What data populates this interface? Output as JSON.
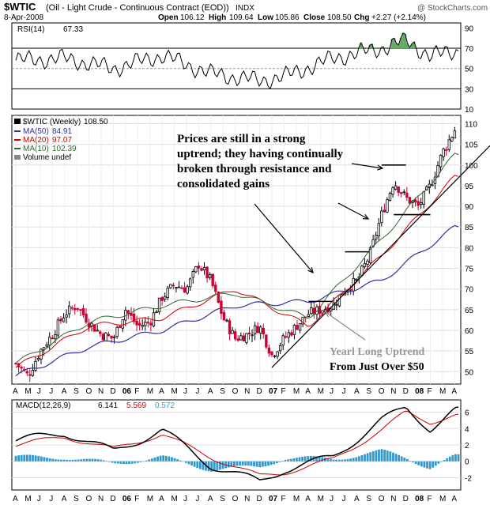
{
  "header": {
    "symbol": "$WTIC",
    "description": "(Oil - Light Crude - Continuous Contract (EOD))",
    "exchange": "INDX",
    "watermark": "@ StockCharts.com",
    "date": "8-Apr-2008",
    "open_label": "Open",
    "open": "106.12",
    "high_label": "High",
    "high": "109.64",
    "low_label": "Low",
    "low": "105.86",
    "close_label": "Close",
    "close": "108.50",
    "chg_label": "Chg",
    "chg": "+2.27 (+2.14%)"
  },
  "rsi": {
    "label": "RSI(14)",
    "value": "67.33"
  },
  "price_legend": {
    "title": "$WTIC (Weekly)",
    "title_value": "108.50",
    "ma50_label": "MA(50)",
    "ma50_value": "84.91",
    "ma20_label": "MA(20)",
    "ma20_value": "97.07",
    "ma10_label": "MA(10)",
    "ma10_value": "102.39",
    "volume_label": "Volume undef"
  },
  "macd": {
    "label": "MACD(12,26,9)",
    "macd": "6.141",
    "signal": "5.569",
    "hist": "0.572"
  },
  "annotations": {
    "main_line1": "Prices are still in a strong",
    "main_line2": "uptrend; they having continually",
    "main_line3": "broken through resistance and",
    "main_line4": "consolidated gains",
    "trend_line1": "Yearl Long Uptrend",
    "trend_line2": "From Just Over $50"
  },
  "colors": {
    "up": "#000000",
    "down": "#cc0033",
    "ma50": "#333399",
    "ma20": "#cc0000",
    "ma10": "#336633",
    "hist": "#3399cc",
    "rsi_fill": "#66aa66"
  },
  "chart_data": [
    {
      "type": "candlestick",
      "title": "$WTIC (Weekly)",
      "period": "weekly",
      "x_range": [
        "2005-04",
        "2008-04"
      ],
      "ylim": [
        47,
        112
      ],
      "y_ticks": [
        50,
        55,
        60,
        65,
        70,
        75,
        80,
        85,
        90,
        95,
        100,
        105,
        110
      ],
      "x_tick_labels": [
        "A",
        "M",
        "J",
        "J",
        "A",
        "S",
        "O",
        "N",
        "D",
        "06",
        "F",
        "M",
        "A",
        "M",
        "J",
        "J",
        "A",
        "S",
        "O",
        "N",
        "D",
        "07",
        "F",
        "M",
        "A",
        "M",
        "J",
        "J",
        "A",
        "S",
        "O",
        "N",
        "D",
        "08",
        "F",
        "M",
        "A"
      ],
      "close_path": {
        "x": [
          "2005-04",
          "2005-05",
          "2005-06",
          "2005-07",
          "2005-08",
          "2005-09",
          "2005-10",
          "2005-11",
          "2005-12",
          "2006-01",
          "2006-02",
          "2006-03",
          "2006-04",
          "2006-05",
          "2006-06",
          "2006-07",
          "2006-08",
          "2006-09",
          "2006-10",
          "2006-11",
          "2006-12",
          "2007-01",
          "2007-02",
          "2007-03",
          "2007-04",
          "2007-05",
          "2007-06",
          "2007-07",
          "2007-08",
          "2007-09",
          "2007-10",
          "2007-11",
          "2007-12",
          "2008-01",
          "2008-02",
          "2008-03",
          "2008-04"
        ],
        "y": [
          52,
          49,
          55,
          59,
          64,
          66,
          62,
          59,
          58,
          65,
          61,
          62,
          68,
          71,
          70,
          76,
          72,
          63,
          58,
          59,
          61,
          54,
          58,
          61,
          64,
          65,
          66,
          70,
          72,
          78,
          88,
          96,
          92,
          90,
          95,
          103,
          108.5
        ]
      },
      "ma50": {
        "x": [
          "2005-04",
          "2005-10",
          "2006-04",
          "2006-10",
          "2007-04",
          "2007-10",
          "2008-04"
        ],
        "y": [
          49,
          56,
          60,
          66,
          67,
          72,
          84.91
        ]
      },
      "ma20": {
        "x": [
          "2005-04",
          "2005-10",
          "2006-04",
          "2006-10",
          "2007-04",
          "2007-10",
          "2008-04"
        ],
        "y": [
          51,
          61,
          63,
          70,
          61,
          78,
          97.07
        ]
      },
      "ma10": {
        "x": [
          "2005-04",
          "2005-10",
          "2006-04",
          "2006-10",
          "2007-04",
          "2007-10",
          "2008-04"
        ],
        "y": [
          52,
          62,
          66,
          69,
          63,
          82,
          102.39
        ]
      },
      "uptrend_line": {
        "x": [
          "2007-01",
          "2008-04"
        ],
        "y": [
          51,
          96
        ]
      },
      "resistance_levels": [
        {
          "x": [
            "2007-04",
            "2007-06"
          ],
          "y": 67
        },
        {
          "x": [
            "2007-07",
            "2007-09"
          ],
          "y": 79
        },
        {
          "x": [
            "2007-10",
            "2007-12"
          ],
          "y": 100
        },
        {
          "x": [
            "2007-11",
            "2008-02"
          ],
          "y": 88
        }
      ]
    },
    {
      "type": "line",
      "title": "RSI(14)",
      "ylim": [
        10,
        95
      ],
      "y_ticks": [
        10,
        30,
        50,
        70,
        90
      ],
      "reference_lines": [
        30,
        50,
        70
      ],
      "x": [
        "2005-04",
        "2005-08",
        "2005-12",
        "2006-04",
        "2006-08",
        "2006-12",
        "2007-02",
        "2007-06",
        "2007-10",
        "2007-12",
        "2008-02",
        "2008-04"
      ],
      "values": [
        58,
        60,
        50,
        63,
        45,
        38,
        42,
        60,
        70,
        78,
        62,
        67.33
      ]
    },
    {
      "type": "line",
      "title": "MACD(12,26,9)",
      "ylim": [
        -3.5,
        7.5
      ],
      "y_ticks": [
        -2,
        0,
        2,
        4,
        6
      ],
      "x": [
        "2005-04",
        "2005-08",
        "2005-12",
        "2006-04",
        "2006-08",
        "2006-12",
        "2007-02",
        "2007-06",
        "2007-10",
        "2007-12",
        "2008-02",
        "2008-04"
      ],
      "series": [
        {
          "name": "MACD",
          "values": [
            2.5,
            3.5,
            1.2,
            3.8,
            -0.5,
            -2.5,
            -1.0,
            0.5,
            5.0,
            6.5,
            4.0,
            6.141
          ]
        },
        {
          "name": "Signal",
          "values": [
            2.0,
            3.0,
            1.5,
            3.3,
            0.5,
            -1.8,
            -1.4,
            0.2,
            3.8,
            6.0,
            4.8,
            5.569
          ]
        },
        {
          "name": "Histogram",
          "values": [
            0.5,
            0.5,
            -0.3,
            0.5,
            -1.0,
            -0.7,
            0.4,
            0.3,
            1.2,
            0.5,
            -0.8,
            0.572
          ]
        }
      ]
    }
  ]
}
